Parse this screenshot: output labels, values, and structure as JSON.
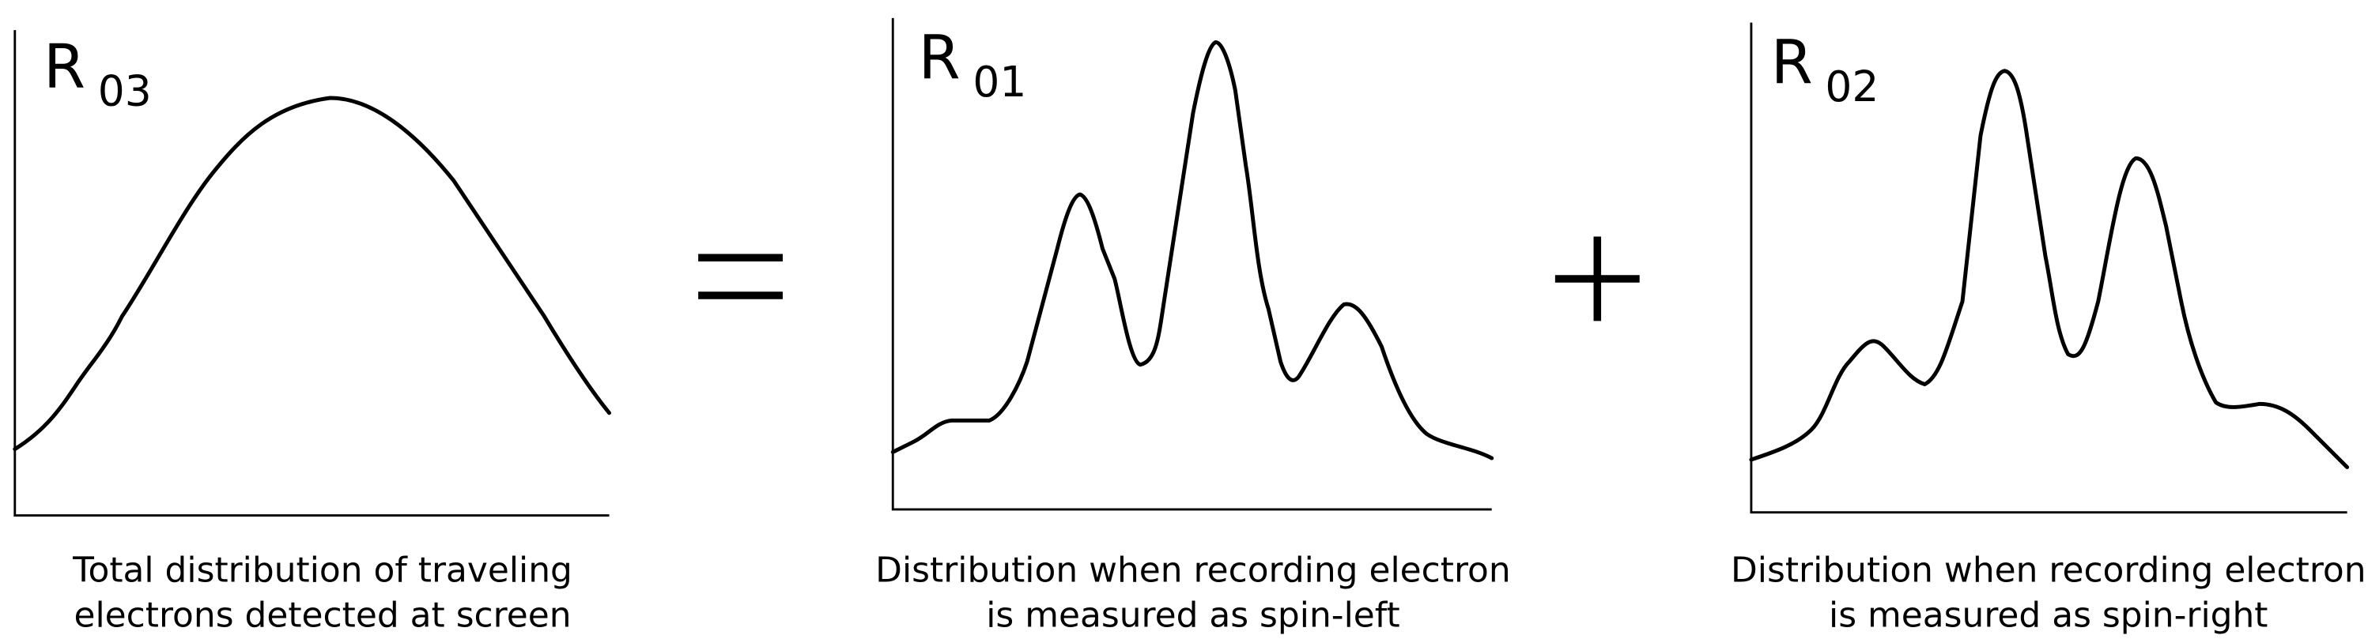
{
  "panels": [
    {
      "label": "R",
      "subscript": "03",
      "caption": [
        "Total distribution of traveling",
        "electrons detected at screen"
      ]
    },
    {
      "label": "R",
      "subscript": "01",
      "caption": [
        "Distribution when recording electron",
        "is measured as spin-left"
      ]
    },
    {
      "label": "R",
      "subscript": "02",
      "caption": [
        "Distribution when recording electron",
        "is measured as spin-right"
      ]
    }
  ]
}
